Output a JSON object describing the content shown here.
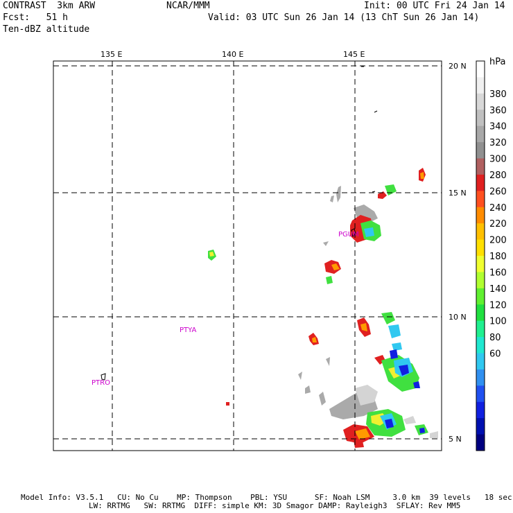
{
  "header": {
    "left_line1": "CONTRAST  3km ARW",
    "left_line2": "Fcst:   51 h",
    "left_line3": "Ten-dBZ altitude",
    "center": "NCAR/MMM",
    "right_line1": "Init: 00 UTC Fri 24 Jan 14",
    "right_line2": "Valid: 03 UTC Sun 26 Jan 14 (13 ChT Sun 26 Jan 14)"
  },
  "map": {
    "lon_labels": [
      "135 E",
      "140 E",
      "145 E"
    ],
    "lat_labels": [
      "20 N",
      "15 N",
      "10 N",
      "5 N"
    ],
    "stations": [
      "PGUM",
      "PTYA",
      "PTRO"
    ]
  },
  "colorbar": {
    "unit": "hPa",
    "labels": [
      "380",
      "360",
      "340",
      "320",
      "300",
      "280",
      "260",
      "240",
      "220",
      "200",
      "180",
      "160",
      "140",
      "120",
      "100",
      "80",
      "60"
    ],
    "colors": [
      "#ffffff",
      "#f0f0f0",
      "#d8d8d8",
      "#c0c0c0",
      "#a8a8a8",
      "#909090",
      "#b06060",
      "#e02020",
      "#ff5020",
      "#ff8c00",
      "#ffc000",
      "#ffe000",
      "#f0ff30",
      "#b0ff30",
      "#60f030",
      "#20e040",
      "#20f090",
      "#20e8d0",
      "#30c8f0",
      "#3090f0",
      "#2050f0",
      "#1020e0",
      "#0010b0",
      "#000080"
    ]
  },
  "footer": {
    "line1": "Model Info: V3.5.1   CU: No Cu    MP: Thompson    PBL: YSU      SF: Noah LSM     3.0 km  39 levels   18 sec",
    "line2": "LW: RRTMG   SW: RRTMG  DIFF: simple KM: 3D Smagor DAMP: Rayleigh3  SFLAY: Rev MM5"
  }
}
